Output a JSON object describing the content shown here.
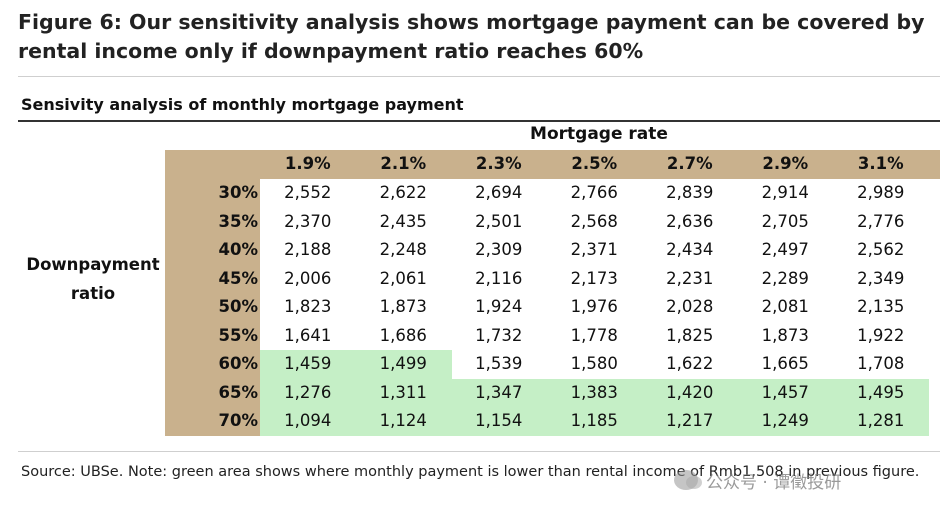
{
  "figure_title": "Figure 6: Our sensitivity analysis shows mortgage payment can be covered by rental income only if downpayment ratio reaches 60%",
  "chart_data": {
    "type": "table",
    "title": "Sensivity analysis of monthly mortgage payment",
    "column_header": "Mortgage rate",
    "row_header": "Downpayment ratio",
    "columns": [
      "1.9%",
      "2.1%",
      "2.3%",
      "2.5%",
      "2.7%",
      "2.9%",
      "3.1%"
    ],
    "rows": [
      "30%",
      "35%",
      "40%",
      "45%",
      "50%",
      "55%",
      "60%",
      "65%",
      "70%"
    ],
    "values": [
      [
        "2,552",
        "2,622",
        "2,694",
        "2,766",
        "2,839",
        "2,914",
        "2,989"
      ],
      [
        "2,370",
        "2,435",
        "2,501",
        "2,568",
        "2,636",
        "2,705",
        "2,776"
      ],
      [
        "2,188",
        "2,248",
        "2,309",
        "2,371",
        "2,434",
        "2,497",
        "2,562"
      ],
      [
        "2,006",
        "2,061",
        "2,116",
        "2,173",
        "2,231",
        "2,289",
        "2,349"
      ],
      [
        "1,823",
        "1,873",
        "1,924",
        "1,976",
        "2,028",
        "2,081",
        "2,135"
      ],
      [
        "1,641",
        "1,686",
        "1,732",
        "1,778",
        "1,825",
        "1,873",
        "1,922"
      ],
      [
        "1,459",
        "1,499",
        "1,539",
        "1,580",
        "1,622",
        "1,665",
        "1,708"
      ],
      [
        "1,276",
        "1,311",
        "1,347",
        "1,383",
        "1,420",
        "1,457",
        "1,495"
      ],
      [
        "1,094",
        "1,124",
        "1,154",
        "1,185",
        "1,217",
        "1,249",
        "1,281"
      ]
    ],
    "highlight_threshold": 1508,
    "colors": {
      "header": "#c9b18d",
      "highlight": "#c5efc6"
    }
  },
  "source_note": "Source: UBSe. Note: green area shows where monthly payment is lower than rental income of Rmb1,508 in previous figure.",
  "watermark": {
    "icon": "wechat-icon",
    "text": "公众号 · 谭徵投研"
  }
}
